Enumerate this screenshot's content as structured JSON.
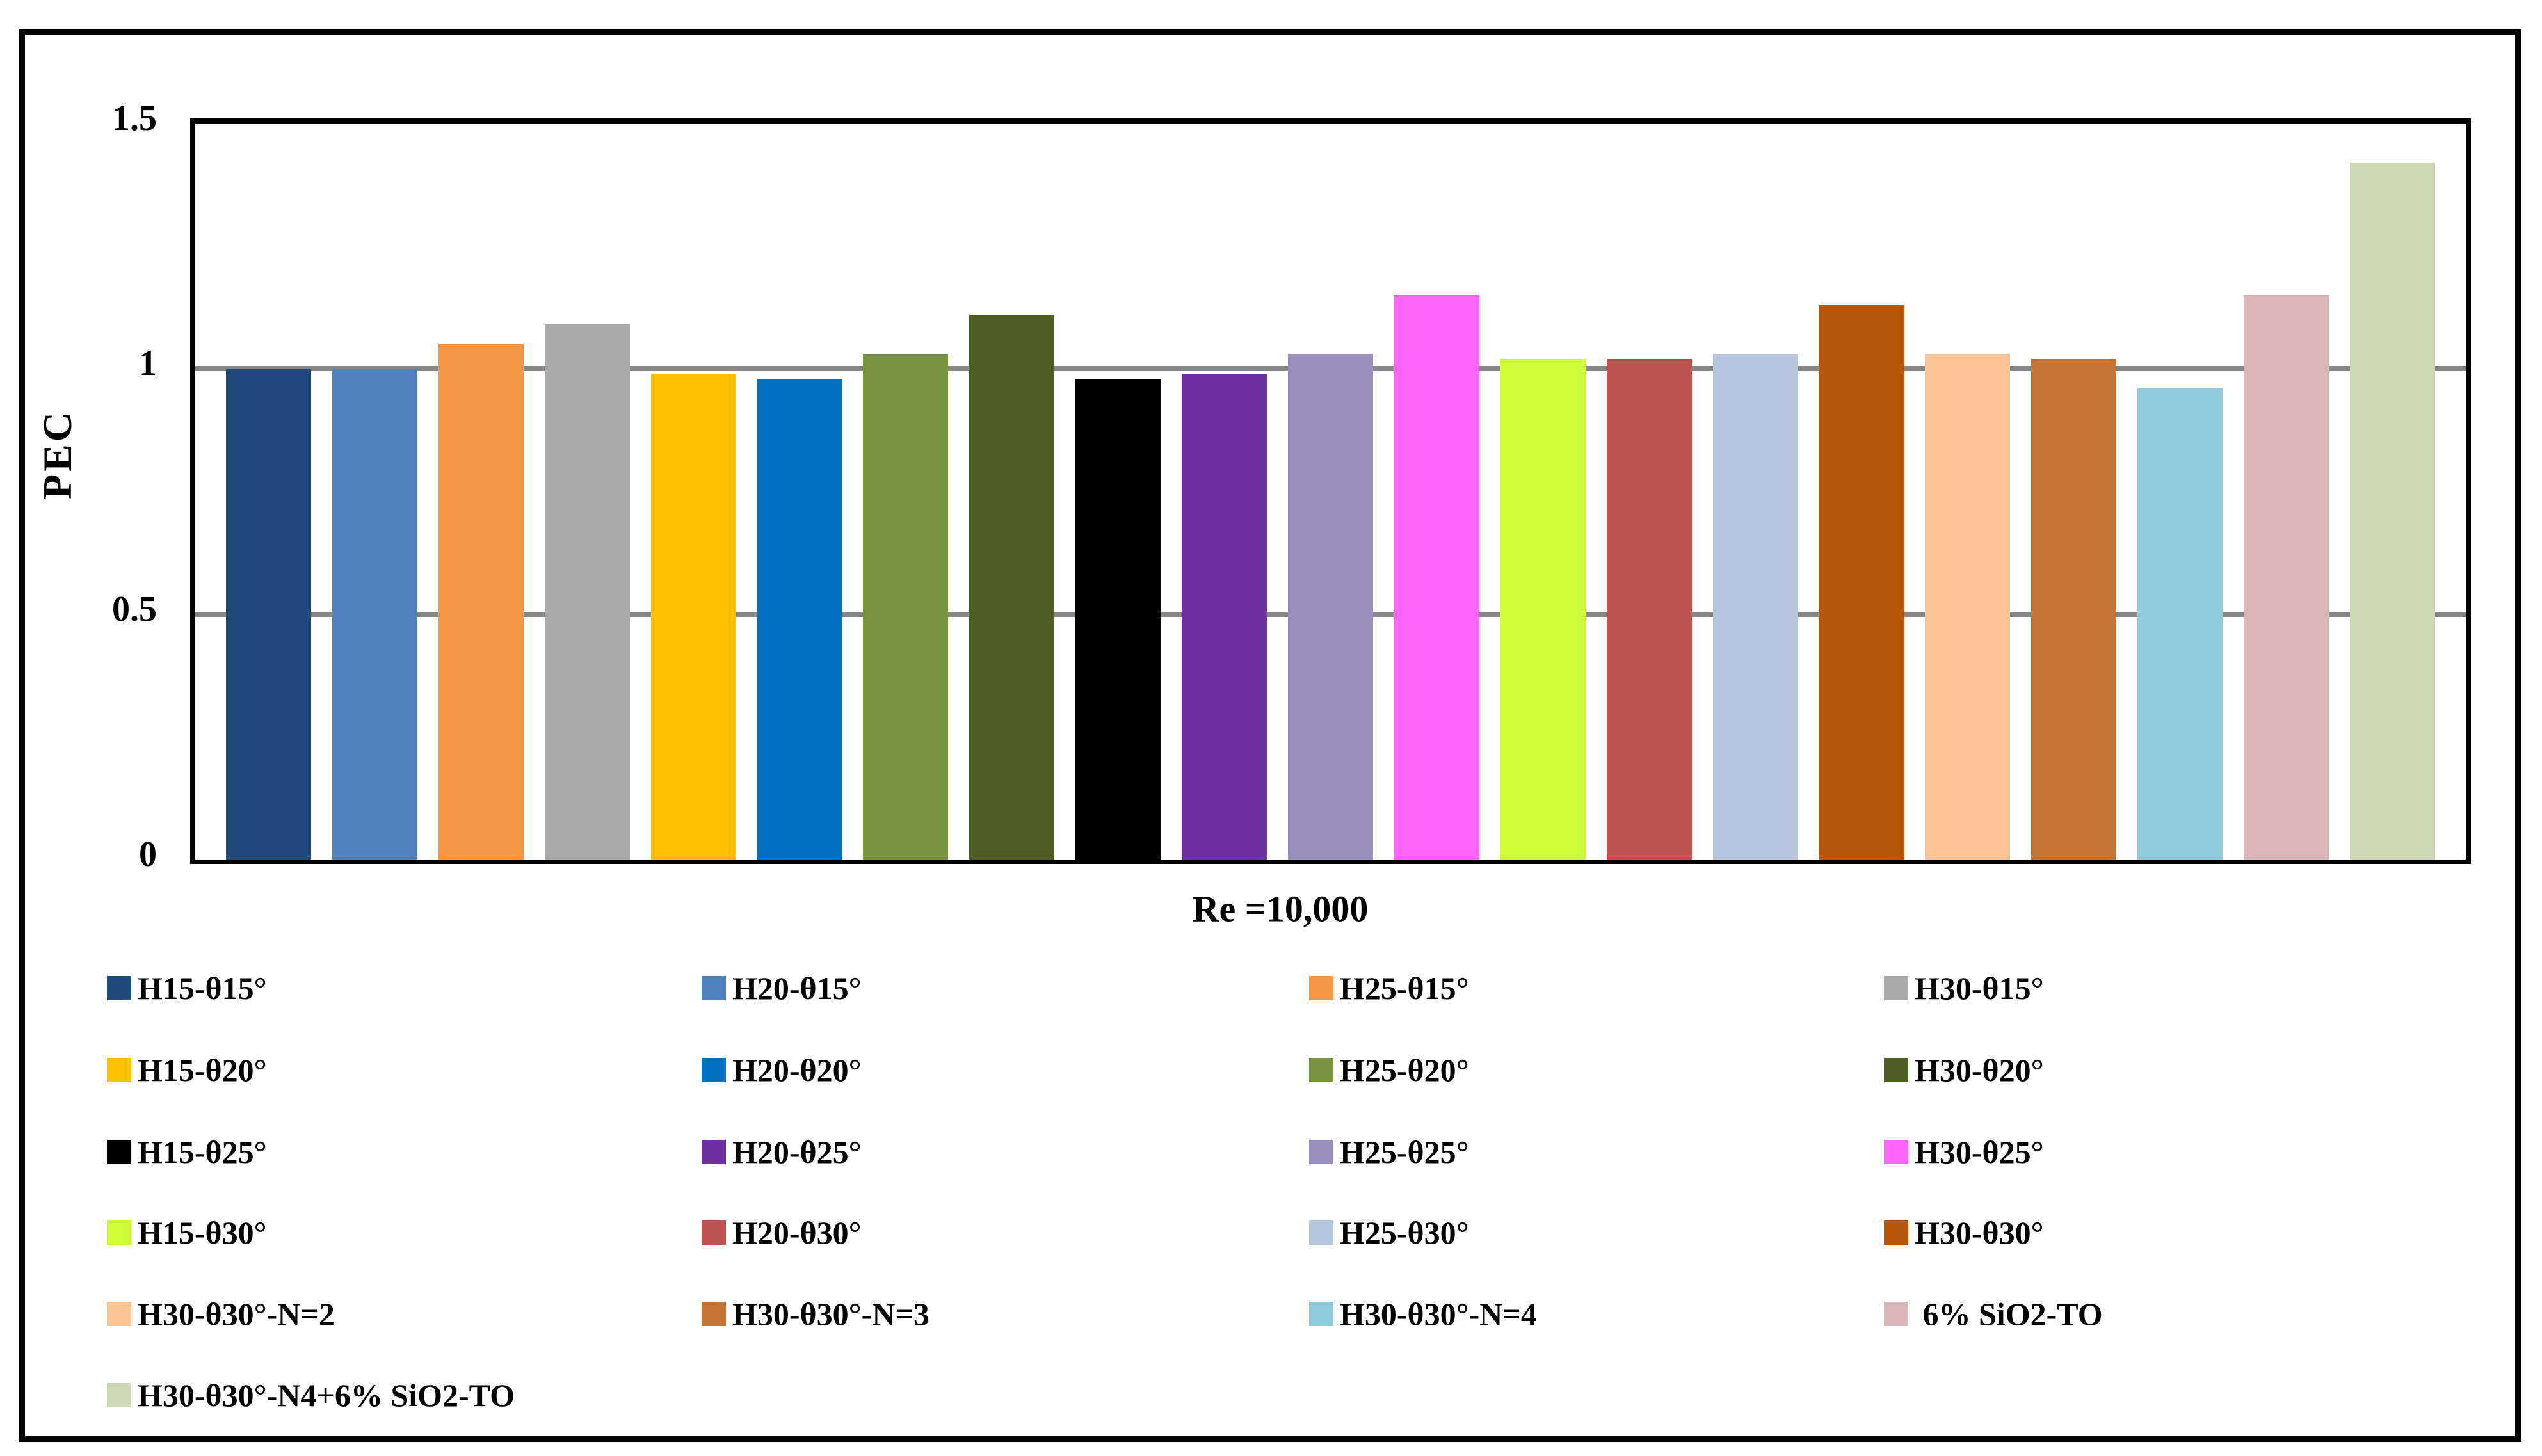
{
  "figure": {
    "background": "#ffffff",
    "border_color": "#000000"
  },
  "chart_data": {
    "type": "bar",
    "title": "",
    "xlabel": "Re =10,000",
    "ylabel": "PEC",
    "ylim": [
      0,
      1.5
    ],
    "yticks": [
      {
        "label": "1.5",
        "value": 1.5
      },
      {
        "label": "1",
        "value": 1.0
      },
      {
        "label": "0.5",
        "value": 0.5
      },
      {
        "label": "0",
        "value": 0.0
      }
    ],
    "grid_values": [
      1.0,
      0.5
    ],
    "gridline_color": "#878787",
    "grid": "on",
    "legend_position": "bottom",
    "categories": [
      "Re =10,000"
    ],
    "series": [
      {
        "name": "H15-θ15°",
        "value": 1.0,
        "color": "#204A7B"
      },
      {
        "name": "H20-θ15°",
        "value": 1.0,
        "color": "#4E81BD"
      },
      {
        "name": "H25-θ15°",
        "value": 1.05,
        "color": "#F59747"
      },
      {
        "name": "H30-θ15°",
        "value": 1.09,
        "color": "#A8A8A8"
      },
      {
        "name": "H15-θ20°",
        "value": 0.99,
        "color": "#FEC001"
      },
      {
        "name": "H20-θ20°",
        "value": 0.98,
        "color": "#0371C2"
      },
      {
        "name": "H25-θ20°",
        "value": 1.03,
        "color": "#78953E"
      },
      {
        "name": "H30-θ20°",
        "value": 1.11,
        "color": "#4D5F23"
      },
      {
        "name": "H15-θ25°",
        "value": 0.98,
        "color": "#000000"
      },
      {
        "name": "H20-θ25°",
        "value": 0.99,
        "color": "#6F30A0"
      },
      {
        "name": "H25-θ25°",
        "value": 1.03,
        "color": "#9A8EBC"
      },
      {
        "name": "H30-θ25°",
        "value": 1.15,
        "color": "#FE65FB"
      },
      {
        "name": "H15-θ30°",
        "value": 1.02,
        "color": "#CDFB38"
      },
      {
        "name": "H20-θ30°",
        "value": 1.02,
        "color": "#C05250"
      },
      {
        "name": "H25-θ30°",
        "value": 1.03,
        "color": "#B7C6DE"
      },
      {
        "name": "H30-θ30°",
        "value": 1.13,
        "color": "#B65609"
      },
      {
        "name": "H30-θ30°-N=2",
        "value": 1.03,
        "color": "#FBC593"
      },
      {
        "name": "H30-θ30°-N=3",
        "value": 1.02,
        "color": "#C47434"
      },
      {
        "name": "H30-θ30°-N=4",
        "value": 0.96,
        "color": "#8FCBDE"
      },
      {
        "name": " 6% SiO2-TO",
        "value": 1.15,
        "color": "#DCB5B6"
      },
      {
        "name": "H30-θ30°-N4+6% SiO2-TO",
        "value": 1.42,
        "color": "#CDD8B4"
      }
    ]
  }
}
